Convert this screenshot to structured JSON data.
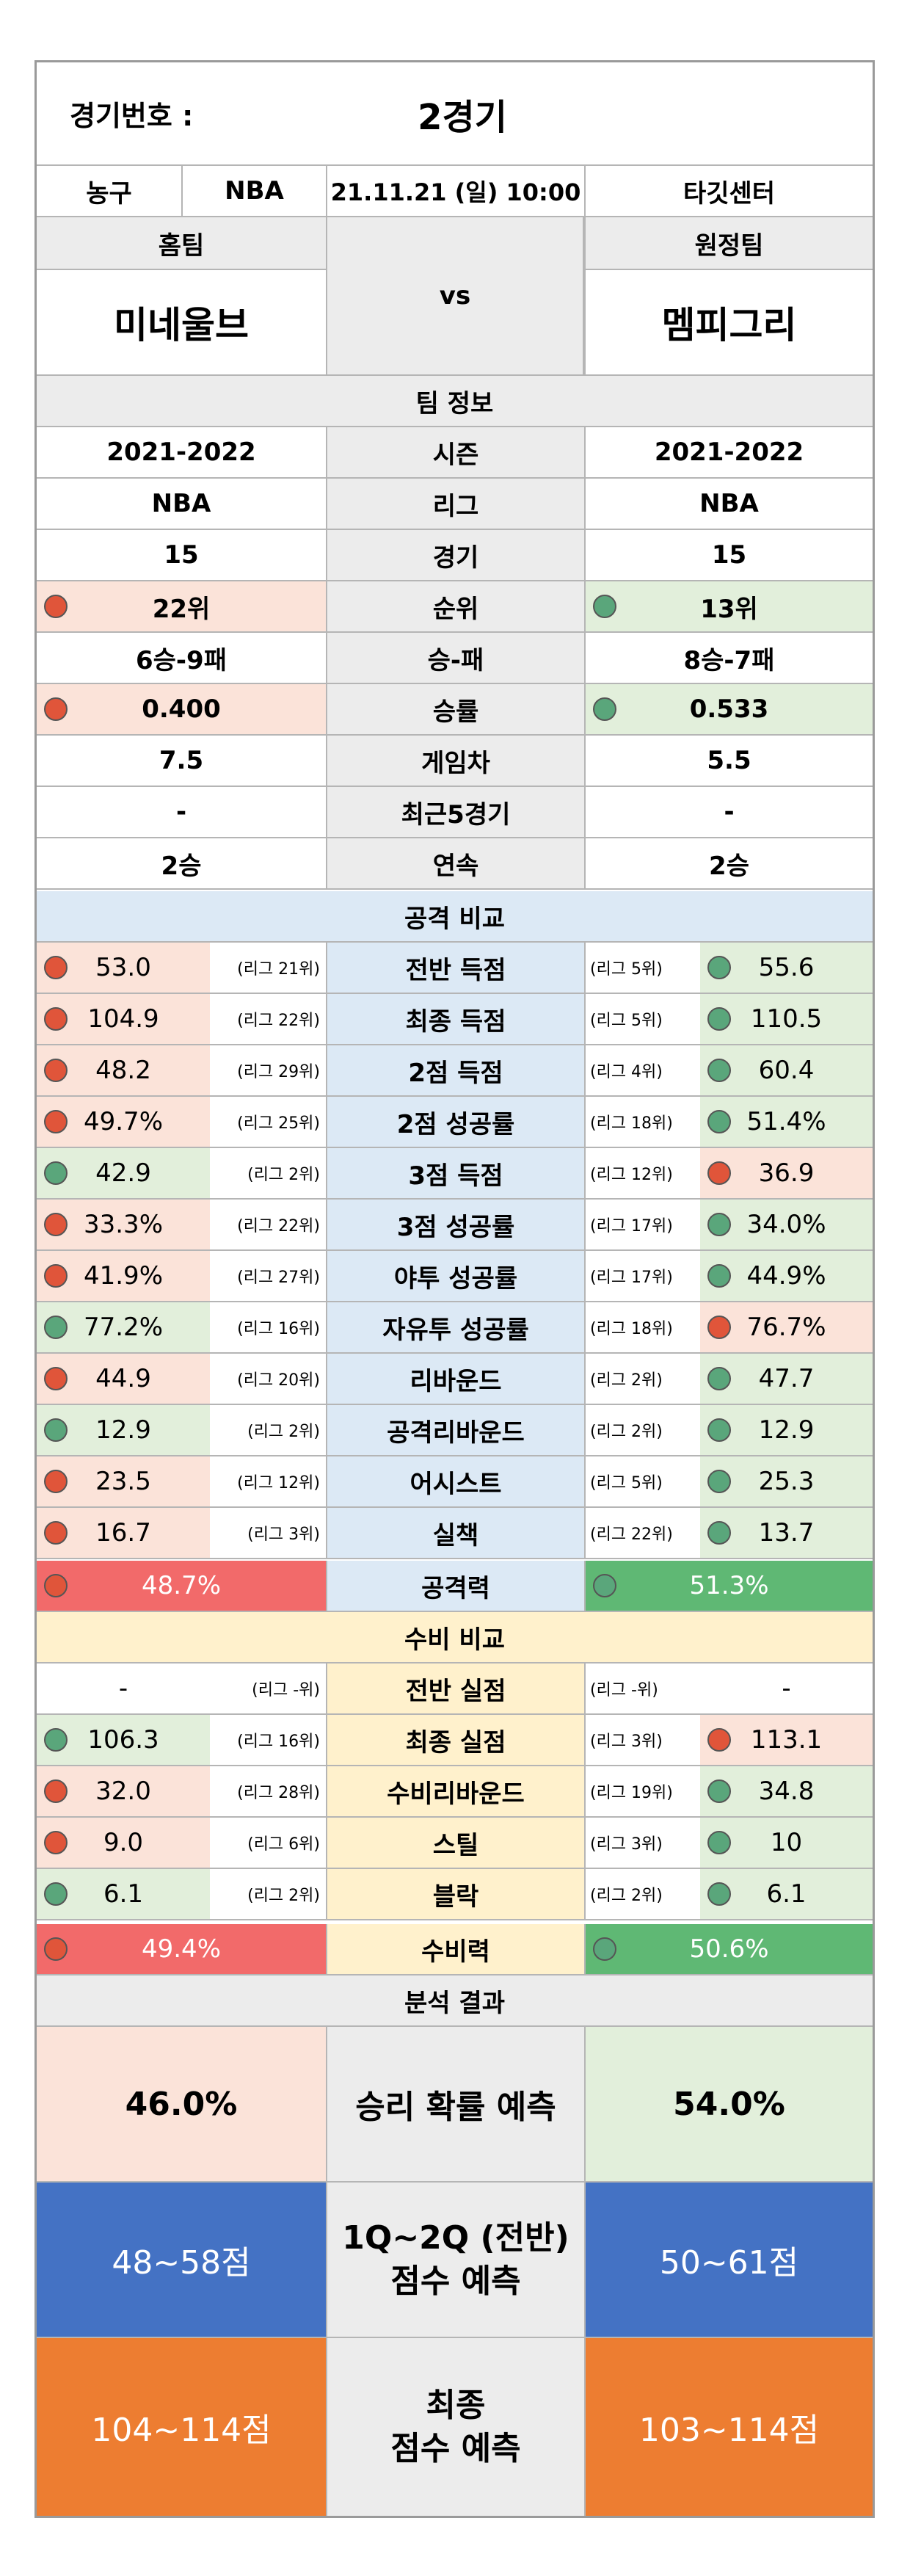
{
  "header": {
    "game_label": "경기번호 :",
    "game_number": "2경기",
    "sport": "농구",
    "league": "NBA",
    "datetime": "21.11.21 (일) 10:00",
    "venue": "타깃센터",
    "home_label": "홈팀",
    "away_label": "원정팀",
    "vs": "vs",
    "home_team": "미네울브",
    "away_team": "멤피그리"
  },
  "team_info": {
    "title": "팀 정보",
    "rows": [
      {
        "label": "시즌",
        "home": "2021-2022",
        "away": "2021-2022"
      },
      {
        "label": "리그",
        "home": "NBA",
        "away": "NBA"
      },
      {
        "label": "경기",
        "home": "15",
        "away": "15"
      },
      {
        "label": "순위",
        "home": "22위",
        "away": "13위",
        "home_dot": "red",
        "away_dot": "green"
      },
      {
        "label": "승-패",
        "home": "6승-9패",
        "away": "8승-7패"
      },
      {
        "label": "승률",
        "home": "0.400",
        "away": "0.533",
        "home_dot": "red",
        "away_dot": "green"
      },
      {
        "label": "게임차",
        "home": "7.5",
        "away": "5.5"
      },
      {
        "label": "최근5경기",
        "home": "-",
        "away": "-"
      },
      {
        "label": "연속",
        "home": "2승",
        "away": "2승"
      }
    ]
  },
  "attack": {
    "title": "공격 비교",
    "rows": [
      {
        "label": "전반 득점",
        "home": "53.0",
        "home_rank": "(리그 21위)",
        "home_dot": "red",
        "away": "55.6",
        "away_rank": "(리그 5위)",
        "away_dot": "green"
      },
      {
        "label": "최종 득점",
        "home": "104.9",
        "home_rank": "(리그 22위)",
        "home_dot": "red",
        "away": "110.5",
        "away_rank": "(리그 5위)",
        "away_dot": "green"
      },
      {
        "label": "2점 득점",
        "home": "48.2",
        "home_rank": "(리그 29위)",
        "home_dot": "red",
        "away": "60.4",
        "away_rank": "(리그 4위)",
        "away_dot": "green"
      },
      {
        "label": "2점 성공률",
        "home": "49.7%",
        "home_rank": "(리그 25위)",
        "home_dot": "red",
        "away": "51.4%",
        "away_rank": "(리그 18위)",
        "away_dot": "green"
      },
      {
        "label": "3점 득점",
        "home": "42.9",
        "home_rank": "(리그 2위)",
        "home_dot": "green",
        "away": "36.9",
        "away_rank": "(리그 12위)",
        "away_dot": "red"
      },
      {
        "label": "3점 성공률",
        "home": "33.3%",
        "home_rank": "(리그 22위)",
        "home_dot": "red",
        "away": "34.0%",
        "away_rank": "(리그 17위)",
        "away_dot": "green"
      },
      {
        "label": "야투 성공률",
        "home": "41.9%",
        "home_rank": "(리그 27위)",
        "home_dot": "red",
        "away": "44.9%",
        "away_rank": "(리그 17위)",
        "away_dot": "green"
      },
      {
        "label": "자유투 성공률",
        "home": "77.2%",
        "home_rank": "(리그 16위)",
        "home_dot": "green",
        "away": "76.7%",
        "away_rank": "(리그 18위)",
        "away_dot": "red"
      },
      {
        "label": "리바운드",
        "home": "44.9",
        "home_rank": "(리그 20위)",
        "home_dot": "red",
        "away": "47.7",
        "away_rank": "(리그 2위)",
        "away_dot": "green"
      },
      {
        "label": "공격리바운드",
        "home": "12.9",
        "home_rank": "(리그 2위)",
        "home_dot": "green",
        "away": "12.9",
        "away_rank": "(리그 2위)",
        "away_dot": "green"
      },
      {
        "label": "어시스트",
        "home": "23.5",
        "home_rank": "(리그 12위)",
        "home_dot": "red",
        "away": "25.3",
        "away_rank": "(리그 5위)",
        "away_dot": "green"
      },
      {
        "label": "실책",
        "home": "16.7",
        "home_rank": "(리그 3위)",
        "home_dot": "red",
        "away": "13.7",
        "away_rank": "(리그 22위)",
        "away_dot": "green"
      }
    ],
    "total": {
      "label": "공격력",
      "home": "48.7%",
      "away": "51.3%"
    }
  },
  "defense": {
    "title": "수비 비교",
    "rows": [
      {
        "label": "전반 실점",
        "home": "-",
        "home_rank": "(리그 -위)",
        "home_dot": "",
        "away": "-",
        "away_rank": "(리그 -위)",
        "away_dot": ""
      },
      {
        "label": "최종 실점",
        "home": "106.3",
        "home_rank": "(리그 16위)",
        "home_dot": "green",
        "away": "113.1",
        "away_rank": "(리그 3위)",
        "away_dot": "red"
      },
      {
        "label": "수비리바운드",
        "home": "32.0",
        "home_rank": "(리그 28위)",
        "home_dot": "red",
        "away": "34.8",
        "away_rank": "(리그 19위)",
        "away_dot": "green"
      },
      {
        "label": "스틸",
        "home": "9.0",
        "home_rank": "(리그 6위)",
        "home_dot": "red",
        "away": "10",
        "away_rank": "(리그 3위)",
        "away_dot": "green"
      },
      {
        "label": "블락",
        "home": "6.1",
        "home_rank": "(리그 2위)",
        "home_dot": "green",
        "away": "6.1",
        "away_rank": "(리그 2위)",
        "away_dot": "green"
      }
    ],
    "total": {
      "label": "수비력",
      "home": "49.4%",
      "away": "50.6%"
    }
  },
  "analysis": {
    "title": "분석 결과",
    "win_label": "승리 확률 예측",
    "home_win": "46.0%",
    "away_win": "54.0%",
    "half_label_1": "1Q~2Q (전반)",
    "half_label_2": "점수 예측",
    "home_half": "48~58점",
    "away_half": "50~61점",
    "final_label_1": "최종",
    "final_label_2": "점수 예측",
    "home_final": "104~114점",
    "away_final": "103~114점"
  },
  "colors": {
    "red_dot": "#e0553a",
    "green_dot": "#5aa67b",
    "home_highlight": "#fbe3d9",
    "away_highlight": "#e2efdb",
    "attack_section": "#dce9f5",
    "defense_section": "#fff1cc",
    "power_red": "#f26a6a",
    "power_green": "#5fb874",
    "half_score_bg": "#4472c4",
    "final_score_bg": "#ed7d31"
  }
}
